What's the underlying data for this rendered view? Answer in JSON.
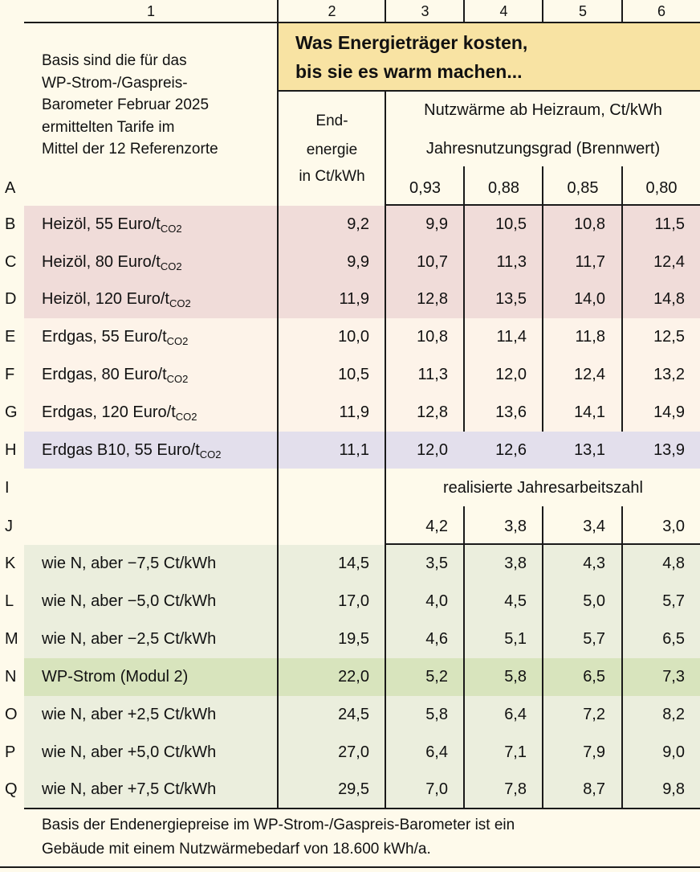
{
  "column_numbers": [
    "1",
    "2",
    "3",
    "4",
    "5",
    "6"
  ],
  "title": {
    "line1": "Was Energieträger kosten,",
    "line2": "bis sie es warm machen..."
  },
  "basis_note": [
    "Basis sind die für das",
    "WP-Strom-/Gaspreis-",
    "Barometer Februar 2025",
    "ermittelten Tarife im",
    "Mittel der 12 Referenzorte"
  ],
  "endenergie_header": [
    "End-",
    "energie",
    "in Ct/kWh"
  ],
  "nutzwaerme_header": "Nutzwärme ab Heizraum, Ct/kWh",
  "jahresnutzungsgrad_header": "Jahresnutzungsgrad (Brennwert)",
  "jahresnutzungsgrad_values": [
    "0,93",
    "0,88",
    "0,85",
    "0,80"
  ],
  "jaz_header": "realisierte Jahresarbeitszahl",
  "jaz_values": [
    "4,2",
    "3,8",
    "3,4",
    "3,0"
  ],
  "row_letters": [
    "A",
    "B",
    "C",
    "D",
    "E",
    "F",
    "G",
    "H",
    "I",
    "J",
    "K",
    "L",
    "M",
    "N",
    "O",
    "P",
    "Q"
  ],
  "colors": {
    "page_bg": "#fefaeb",
    "title_bg": "#f8e3a3",
    "heizoel_bg": "#f0dcd9",
    "erdgas_bg": "#fdf3e9",
    "b10_bg": "#e3dfec",
    "wp_light_bg": "#ebeedd",
    "wp_main_bg": "#d8e4bd"
  },
  "rows": [
    {
      "letter": "B",
      "label": "Heizöl, 55 Euro/t",
      "sub": "CO2",
      "group": "heizoel",
      "values": [
        "9,2",
        "9,9",
        "10,5",
        "10,8",
        "11,5"
      ]
    },
    {
      "letter": "C",
      "label": "Heizöl, 80 Euro/t",
      "sub": "CO2",
      "group": "heizoel",
      "values": [
        "9,9",
        "10,7",
        "11,3",
        "11,7",
        "12,4"
      ]
    },
    {
      "letter": "D",
      "label": "Heizöl, 120 Euro/t",
      "sub": "CO2",
      "group": "heizoel",
      "values": [
        "11,9",
        "12,8",
        "13,5",
        "14,0",
        "14,8"
      ]
    },
    {
      "letter": "E",
      "label": "Erdgas, 55 Euro/t",
      "sub": "CO2",
      "group": "erdgas",
      "values": [
        "10,0",
        "10,8",
        "11,4",
        "11,8",
        "12,5"
      ]
    },
    {
      "letter": "F",
      "label": "Erdgas, 80 Euro/t",
      "sub": "CO2",
      "group": "erdgas",
      "values": [
        "10,5",
        "11,3",
        "12,0",
        "12,4",
        "13,2"
      ]
    },
    {
      "letter": "G",
      "label": "Erdgas, 120 Euro/t",
      "sub": "CO2",
      "group": "erdgas",
      "values": [
        "11,9",
        "12,8",
        "13,6",
        "14,1",
        "14,9"
      ]
    },
    {
      "letter": "H",
      "label": "Erdgas B10, 55 Euro/t",
      "sub": "CO2",
      "group": "b10",
      "values": [
        "11,1",
        "12,0",
        "12,6",
        "13,1",
        "13,9"
      ]
    },
    {
      "letter": "K",
      "label": "wie N, aber −7,5 Ct/kWh",
      "sub": "",
      "group": "wp_light",
      "values": [
        "14,5",
        "3,5",
        "3,8",
        "4,3",
        "4,8"
      ]
    },
    {
      "letter": "L",
      "label": "wie N, aber −5,0 Ct/kWh",
      "sub": "",
      "group": "wp_light",
      "values": [
        "17,0",
        "4,0",
        "4,5",
        "5,0",
        "5,7"
      ]
    },
    {
      "letter": "M",
      "label": "wie N, aber −2,5 Ct/kWh",
      "sub": "",
      "group": "wp_light",
      "values": [
        "19,5",
        "4,6",
        "5,1",
        "5,7",
        "6,5"
      ]
    },
    {
      "letter": "N",
      "label": "WP-Strom (Modul 2)",
      "sub": "",
      "group": "wp_main",
      "values": [
        "22,0",
        "5,2",
        "5,8",
        "6,5",
        "7,3"
      ]
    },
    {
      "letter": "O",
      "label": "wie N, aber +2,5 Ct/kWh",
      "sub": "",
      "group": "wp_light",
      "values": [
        "24,5",
        "5,8",
        "6,4",
        "7,2",
        "8,2"
      ]
    },
    {
      "letter": "P",
      "label": "wie N, aber +5,0 Ct/kWh",
      "sub": "",
      "group": "wp_light",
      "values": [
        "27,0",
        "6,4",
        "7,1",
        "7,9",
        "9,0"
      ]
    },
    {
      "letter": "Q",
      "label": "wie N, aber +7,5 Ct/kWh",
      "sub": "",
      "group": "wp_light",
      "values": [
        "29,5",
        "7,0",
        "7,8",
        "8,7",
        "9,8"
      ]
    }
  ],
  "footer": [
    "Basis der Endenergiepreise im WP-Strom-/Gaspreis-Barometer ist ein",
    "Gebäude mit einem Nutzwärmebedarf von 18.600 kWh/a."
  ]
}
